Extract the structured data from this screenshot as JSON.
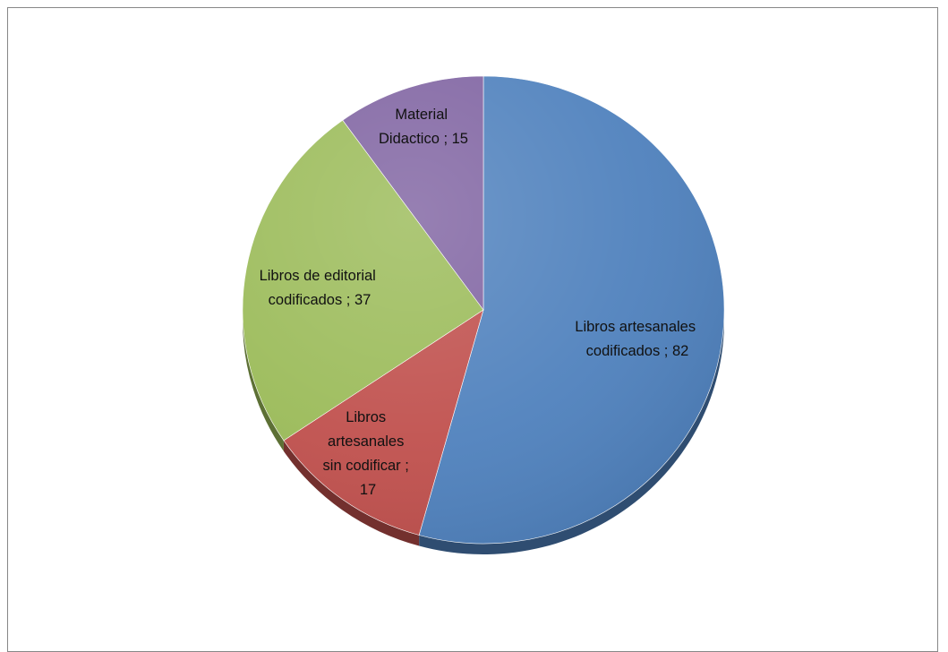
{
  "chart_data": {
    "type": "pie",
    "title": "",
    "start_angle_deg": 0,
    "direction": "clockwise",
    "legend": "none",
    "slices": [
      {
        "label": "Libros artesanales codificados ; 82",
        "category": "Libros artesanales codificados",
        "value": 82,
        "color": "#4F81BD"
      },
      {
        "label": "Libros artesanales sin codificar ; 17",
        "category": "Libros artesanales sin codificar",
        "value": 17,
        "color": "#C0504D"
      },
      {
        "label": "Libros de editorial codificados ; 37",
        "category": "Libros de editorial codificados",
        "value": 37,
        "color": "#9BBB59"
      },
      {
        "label": "Material Didactico ; 15",
        "category": "Material Didactico",
        "value": 15,
        "color": "#8064A2"
      }
    ]
  }
}
